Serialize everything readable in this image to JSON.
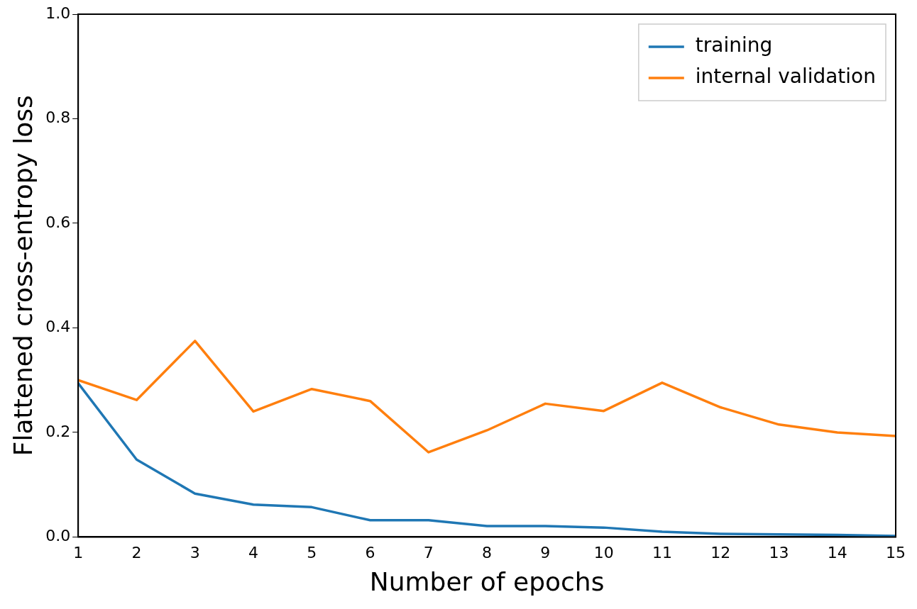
{
  "chart_data": {
    "type": "line",
    "xlabel": "Number of epochs",
    "ylabel": "Flattened cross-entropy loss",
    "x": [
      1,
      2,
      3,
      4,
      5,
      6,
      7,
      8,
      9,
      10,
      11,
      12,
      13,
      14,
      15
    ],
    "series": [
      {
        "name": "training",
        "color": "#1f77b4",
        "values": [
          0.294,
          0.148,
          0.083,
          0.062,
          0.057,
          0.032,
          0.032,
          0.021,
          0.021,
          0.018,
          0.01,
          0.006,
          0.005,
          0.004,
          0.002
        ]
      },
      {
        "name": "internal validation",
        "color": "#ff7f0e",
        "values": [
          0.3,
          0.262,
          0.375,
          0.24,
          0.283,
          0.26,
          0.162,
          0.204,
          0.255,
          0.241,
          0.295,
          0.248,
          0.215,
          0.2,
          0.193
        ]
      }
    ],
    "xlim": [
      1,
      15
    ],
    "xticks": [
      1,
      2,
      3,
      4,
      5,
      6,
      7,
      8,
      9,
      10,
      11,
      12,
      13,
      14,
      15
    ],
    "ylim": [
      0,
      1
    ],
    "yticks": [
      {
        "value": 0,
        "label": "0.0"
      },
      0.2,
      0.4,
      0.6,
      0.8,
      {
        "value": 1,
        "label": "1.0"
      }
    ],
    "grid": false,
    "legend": "top right",
    "marker": "none",
    "line_style": "solid"
  }
}
